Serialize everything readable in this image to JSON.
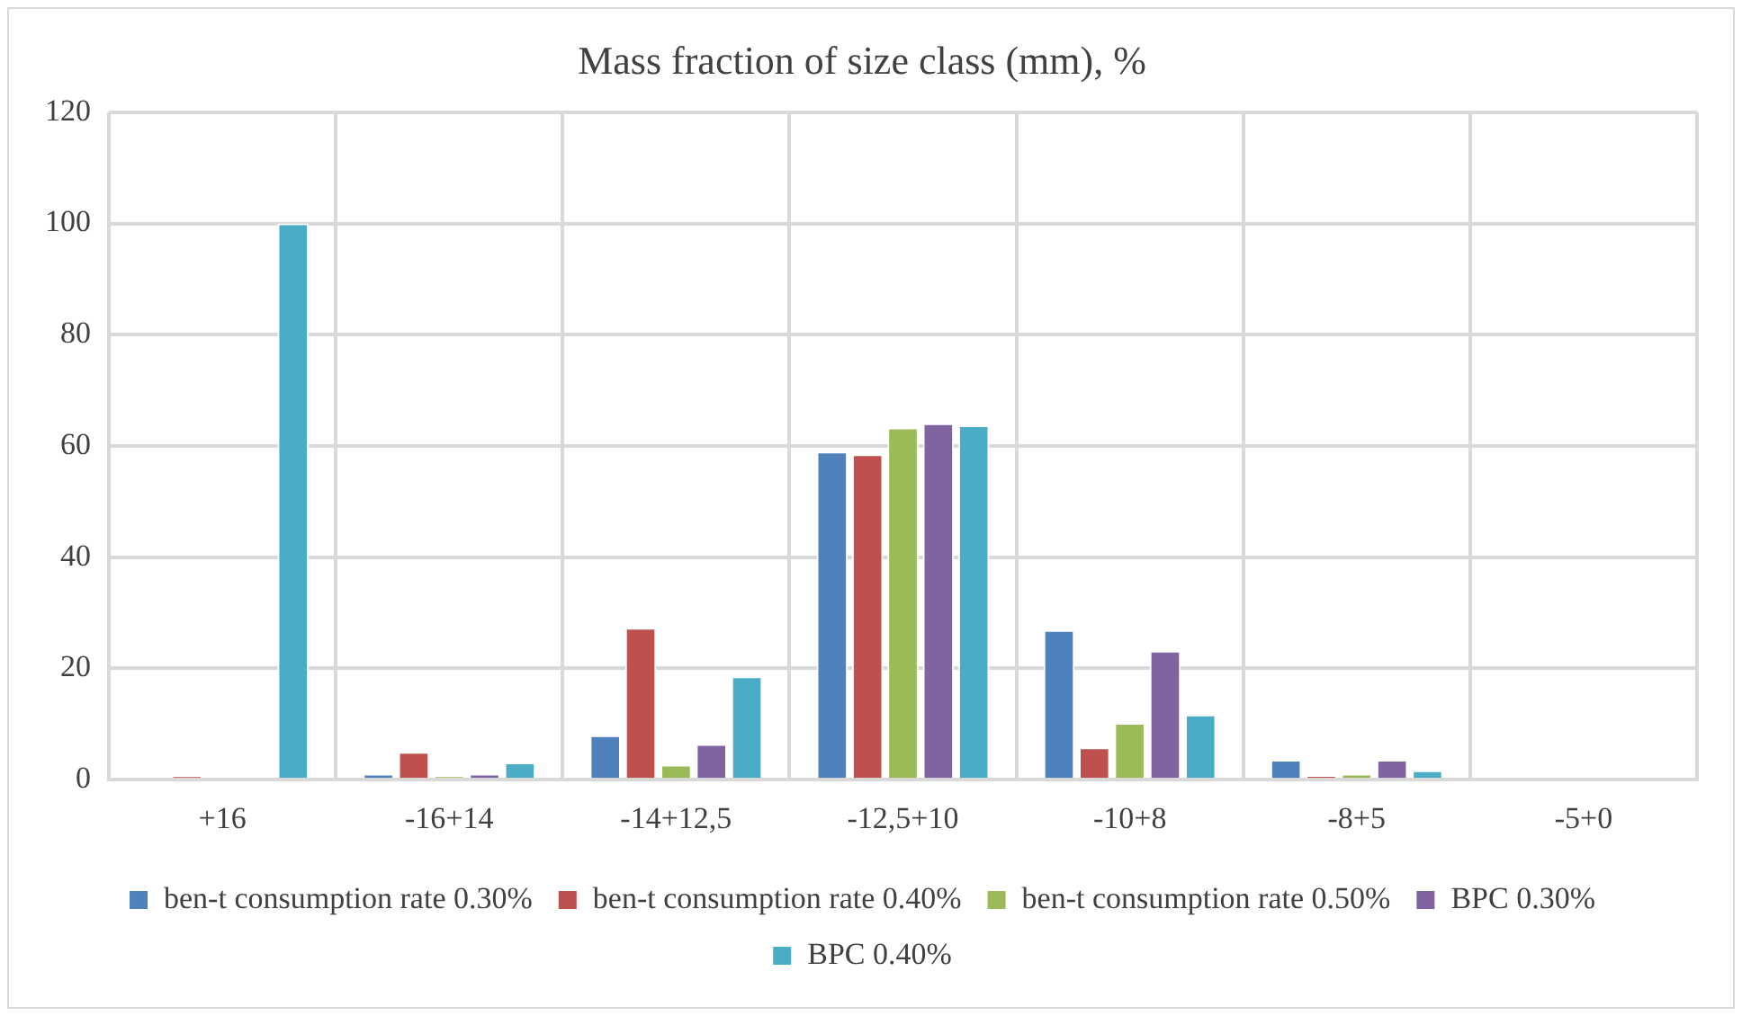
{
  "chart_data": {
    "type": "bar",
    "title": "Mass fraction of size class (mm), %",
    "categories": [
      "+16",
      "-16+14",
      "-14+12,5",
      "-12,5+10",
      "-10+8",
      "-8+5",
      "-5+0"
    ],
    "series": [
      {
        "name": "ben-t consumption rate 0.30%",
        "color": "#4f81bd",
        "values": [
          0,
          1.1,
          8.0,
          59.0,
          26.9,
          3.6,
          0
        ]
      },
      {
        "name": "ben-t consumption rate 0.40%",
        "color": "#c0504d",
        "values": [
          0.6,
          5.0,
          27.3,
          58.5,
          5.8,
          0.7,
          0
        ]
      },
      {
        "name": "ben-t consumption rate 0.50%",
        "color": "#9bbb59",
        "values": [
          0,
          0.6,
          2.7,
          63.3,
          10.2,
          1.1,
          0
        ]
      },
      {
        "name": "BPC 0.30%",
        "color": "#8064a2",
        "values": [
          0,
          1.1,
          6.4,
          64.1,
          23.2,
          3.6,
          0
        ]
      },
      {
        "name": "BPC 0.40%",
        "color": "#4bacc6",
        "values": [
          100,
          3.1,
          18.6,
          63.7,
          11.7,
          1.7,
          0
        ]
      }
    ],
    "ylim": [
      0,
      120
    ],
    "yticks": [
      0,
      20,
      40,
      60,
      80,
      100,
      120
    ],
    "grid": true,
    "legend": "bottom"
  }
}
